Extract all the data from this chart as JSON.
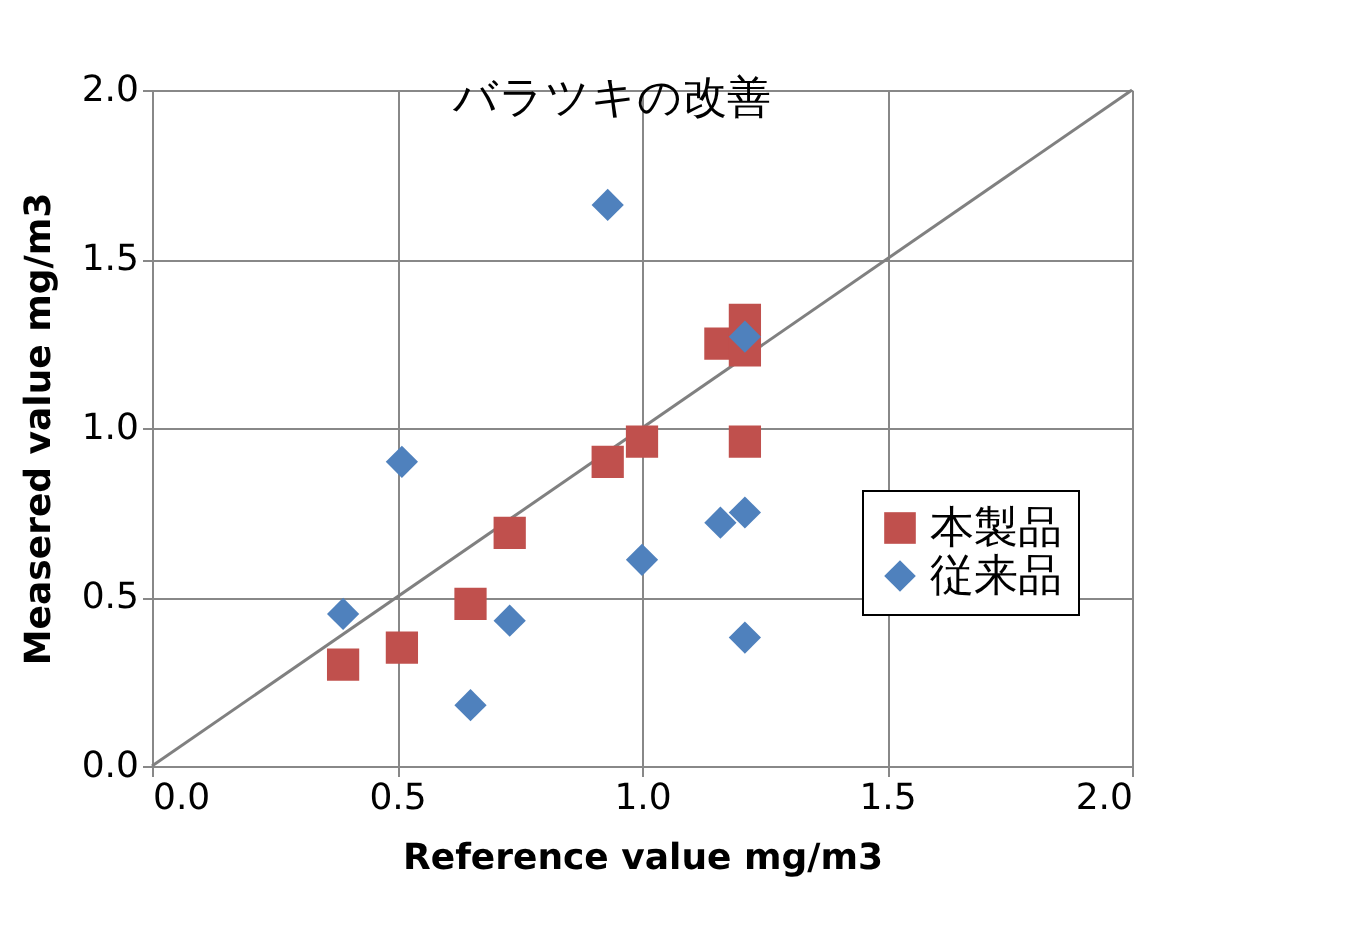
{
  "chart_data": {
    "type": "scatter",
    "title": "バラツキの改善",
    "xlabel": "Reference value  mg/m3",
    "ylabel": "Measered value  mg/m3",
    "xlim": [
      0,
      2
    ],
    "ylim": [
      0,
      2
    ],
    "xticks": [
      {
        "value": 0,
        "label": "0.0"
      },
      {
        "value": 0.5,
        "label": "0.5"
      },
      {
        "value": 1,
        "label": "1.0"
      },
      {
        "value": 1.5,
        "label": "1.5"
      },
      {
        "value": 2,
        "label": "2.0"
      }
    ],
    "yticks": [
      {
        "value": 0,
        "label": "0.0"
      },
      {
        "value": 0.5,
        "label": "0.5"
      },
      {
        "value": 1,
        "label": "1.0"
      },
      {
        "value": 1.5,
        "label": "1.5"
      },
      {
        "value": 2,
        "label": "2.0"
      }
    ],
    "grid": true,
    "legend": "right",
    "series": [
      {
        "type": "line",
        "color": "#808080",
        "x": [
          0,
          2
        ],
        "values": [
          0,
          2
        ],
        "marker": "none",
        "line_style": "solid"
      },
      {
        "name": "本製品",
        "color": "#c0504d",
        "marker": "square",
        "x": [
          0.39,
          0.51,
          0.65,
          0.73,
          0.93,
          1.0,
          1.16,
          1.21,
          1.21,
          1.21
        ],
        "values": [
          0.3,
          0.35,
          0.48,
          0.69,
          0.9,
          0.96,
          1.25,
          1.32,
          1.23,
          0.96
        ]
      },
      {
        "name": "従来品",
        "color": "#4f81bd",
        "marker": "diamond",
        "x": [
          0.39,
          0.51,
          0.65,
          0.73,
          0.93,
          1.0,
          1.16,
          1.21,
          1.21,
          1.21
        ],
        "values": [
          0.45,
          0.9,
          0.18,
          0.43,
          1.66,
          0.61,
          0.72,
          0.75,
          0.38,
          1.27
        ]
      }
    ]
  }
}
